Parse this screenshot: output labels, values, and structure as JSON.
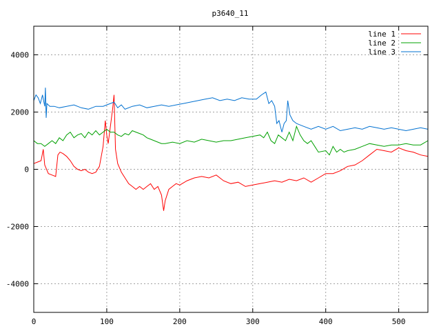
{
  "chart_data": {
    "type": "line",
    "title": "p3640_11",
    "xlabel": "",
    "ylabel": "",
    "xlim": [
      0,
      540
    ],
    "ylim": [
      -5000,
      5000
    ],
    "xticks": [
      0,
      100,
      200,
      300,
      400,
      500
    ],
    "yticks": [
      -4000,
      -2000,
      0,
      2000,
      4000
    ],
    "grid": true,
    "legend_position": "top-right",
    "series": [
      {
        "name": "line 1",
        "color": "#ff0000",
        "points": [
          [
            0,
            200
          ],
          [
            5,
            250
          ],
          [
            10,
            300
          ],
          [
            13,
            700
          ],
          [
            15,
            150
          ],
          [
            20,
            -150
          ],
          [
            25,
            -200
          ],
          [
            30,
            -250
          ],
          [
            33,
            500
          ],
          [
            36,
            600
          ],
          [
            40,
            550
          ],
          [
            45,
            450
          ],
          [
            50,
            300
          ],
          [
            55,
            100
          ],
          [
            60,
            0
          ],
          [
            65,
            -50
          ],
          [
            70,
            0
          ],
          [
            75,
            -100
          ],
          [
            80,
            -150
          ],
          [
            85,
            -100
          ],
          [
            90,
            100
          ],
          [
            95,
            800
          ],
          [
            98,
            1700
          ],
          [
            100,
            1200
          ],
          [
            102,
            900
          ],
          [
            105,
            1500
          ],
          [
            108,
            2100
          ],
          [
            110,
            2600
          ],
          [
            112,
            700
          ],
          [
            115,
            200
          ],
          [
            120,
            -100
          ],
          [
            125,
            -300
          ],
          [
            130,
            -500
          ],
          [
            135,
            -600
          ],
          [
            140,
            -700
          ],
          [
            145,
            -600
          ],
          [
            150,
            -700
          ],
          [
            155,
            -600
          ],
          [
            160,
            -500
          ],
          [
            165,
            -700
          ],
          [
            170,
            -600
          ],
          [
            175,
            -900
          ],
          [
            178,
            -1450
          ],
          [
            180,
            -1100
          ],
          [
            185,
            -700
          ],
          [
            190,
            -600
          ],
          [
            195,
            -500
          ],
          [
            200,
            -550
          ],
          [
            210,
            -400
          ],
          [
            220,
            -300
          ],
          [
            230,
            -250
          ],
          [
            240,
            -300
          ],
          [
            250,
            -200
          ],
          [
            260,
            -400
          ],
          [
            270,
            -500
          ],
          [
            280,
            -450
          ],
          [
            290,
            -600
          ],
          [
            300,
            -550
          ],
          [
            310,
            -500
          ],
          [
            320,
            -450
          ],
          [
            330,
            -400
          ],
          [
            340,
            -450
          ],
          [
            350,
            -350
          ],
          [
            360,
            -400
          ],
          [
            370,
            -300
          ],
          [
            380,
            -450
          ],
          [
            390,
            -300
          ],
          [
            400,
            -150
          ],
          [
            410,
            -150
          ],
          [
            420,
            -50
          ],
          [
            430,
            100
          ],
          [
            440,
            150
          ],
          [
            450,
            300
          ],
          [
            460,
            500
          ],
          [
            470,
            700
          ],
          [
            480,
            650
          ],
          [
            490,
            600
          ],
          [
            500,
            750
          ],
          [
            510,
            650
          ],
          [
            520,
            600
          ],
          [
            530,
            500
          ],
          [
            540,
            450
          ]
        ]
      },
      {
        "name": "line 2",
        "color": "#00a000",
        "points": [
          [
            0,
            1000
          ],
          [
            5,
            900
          ],
          [
            10,
            900
          ],
          [
            15,
            800
          ],
          [
            20,
            900
          ],
          [
            25,
            1000
          ],
          [
            30,
            900
          ],
          [
            35,
            1100
          ],
          [
            40,
            1000
          ],
          [
            45,
            1200
          ],
          [
            50,
            1300
          ],
          [
            55,
            1100
          ],
          [
            60,
            1200
          ],
          [
            65,
            1250
          ],
          [
            70,
            1100
          ],
          [
            75,
            1300
          ],
          [
            80,
            1200
          ],
          [
            85,
            1350
          ],
          [
            90,
            1200
          ],
          [
            95,
            1300
          ],
          [
            100,
            1400
          ],
          [
            105,
            1300
          ],
          [
            110,
            1300
          ],
          [
            115,
            1200
          ],
          [
            120,
            1150
          ],
          [
            125,
            1250
          ],
          [
            130,
            1200
          ],
          [
            135,
            1350
          ],
          [
            140,
            1300
          ],
          [
            145,
            1250
          ],
          [
            150,
            1200
          ],
          [
            155,
            1100
          ],
          [
            160,
            1050
          ],
          [
            165,
            1000
          ],
          [
            170,
            950
          ],
          [
            175,
            900
          ],
          [
            180,
            900
          ],
          [
            190,
            950
          ],
          [
            200,
            900
          ],
          [
            210,
            1000
          ],
          [
            220,
            950
          ],
          [
            230,
            1050
          ],
          [
            240,
            1000
          ],
          [
            250,
            950
          ],
          [
            260,
            1000
          ],
          [
            270,
            1000
          ],
          [
            280,
            1050
          ],
          [
            290,
            1100
          ],
          [
            300,
            1150
          ],
          [
            310,
            1200
          ],
          [
            315,
            1100
          ],
          [
            320,
            1300
          ],
          [
            325,
            1000
          ],
          [
            330,
            900
          ],
          [
            335,
            1200
          ],
          [
            340,
            1100
          ],
          [
            345,
            1000
          ],
          [
            350,
            1300
          ],
          [
            355,
            1000
          ],
          [
            360,
            1500
          ],
          [
            365,
            1200
          ],
          [
            370,
            1000
          ],
          [
            375,
            900
          ],
          [
            380,
            1000
          ],
          [
            385,
            800
          ],
          [
            390,
            600
          ],
          [
            400,
            650
          ],
          [
            405,
            500
          ],
          [
            410,
            800
          ],
          [
            415,
            600
          ],
          [
            420,
            700
          ],
          [
            425,
            600
          ],
          [
            430,
            650
          ],
          [
            440,
            700
          ],
          [
            450,
            800
          ],
          [
            460,
            900
          ],
          [
            470,
            850
          ],
          [
            480,
            800
          ],
          [
            490,
            850
          ],
          [
            500,
            850
          ],
          [
            510,
            900
          ],
          [
            520,
            850
          ],
          [
            530,
            850
          ],
          [
            540,
            1000
          ]
        ]
      },
      {
        "name": "line 3",
        "color": "#0070d0",
        "points": [
          [
            0,
            2400
          ],
          [
            3,
            2600
          ],
          [
            6,
            2500
          ],
          [
            9,
            2300
          ],
          [
            12,
            2600
          ],
          [
            15,
            2200
          ],
          [
            16,
            2850
          ],
          [
            17,
            1800
          ],
          [
            18,
            2300
          ],
          [
            22,
            2200
          ],
          [
            28,
            2200
          ],
          [
            35,
            2150
          ],
          [
            45,
            2200
          ],
          [
            55,
            2250
          ],
          [
            65,
            2150
          ],
          [
            75,
            2100
          ],
          [
            85,
            2200
          ],
          [
            95,
            2200
          ],
          [
            100,
            2250
          ],
          [
            105,
            2300
          ],
          [
            110,
            2350
          ],
          [
            115,
            2150
          ],
          [
            120,
            2250
          ],
          [
            125,
            2100
          ],
          [
            135,
            2200
          ],
          [
            145,
            2250
          ],
          [
            155,
            2150
          ],
          [
            165,
            2200
          ],
          [
            175,
            2250
          ],
          [
            185,
            2200
          ],
          [
            195,
            2250
          ],
          [
            205,
            2300
          ],
          [
            215,
            2350
          ],
          [
            225,
            2400
          ],
          [
            235,
            2450
          ],
          [
            245,
            2500
          ],
          [
            255,
            2400
          ],
          [
            265,
            2450
          ],
          [
            275,
            2400
          ],
          [
            285,
            2500
          ],
          [
            295,
            2450
          ],
          [
            305,
            2450
          ],
          [
            312,
            2600
          ],
          [
            318,
            2700
          ],
          [
            322,
            2300
          ],
          [
            326,
            2400
          ],
          [
            330,
            2200
          ],
          [
            333,
            1600
          ],
          [
            336,
            1700
          ],
          [
            340,
            1300
          ],
          [
            343,
            1600
          ],
          [
            346,
            1700
          ],
          [
            348,
            2400
          ],
          [
            351,
            1900
          ],
          [
            355,
            1700
          ],
          [
            360,
            1600
          ],
          [
            365,
            1550
          ],
          [
            370,
            1500
          ],
          [
            380,
            1400
          ],
          [
            390,
            1500
          ],
          [
            400,
            1400
          ],
          [
            410,
            1500
          ],
          [
            420,
            1350
          ],
          [
            430,
            1400
          ],
          [
            440,
            1450
          ],
          [
            450,
            1400
          ],
          [
            460,
            1500
          ],
          [
            470,
            1450
          ],
          [
            480,
            1400
          ],
          [
            490,
            1450
          ],
          [
            500,
            1400
          ],
          [
            510,
            1350
          ],
          [
            520,
            1400
          ],
          [
            530,
            1450
          ],
          [
            540,
            1400
          ]
        ]
      }
    ]
  }
}
